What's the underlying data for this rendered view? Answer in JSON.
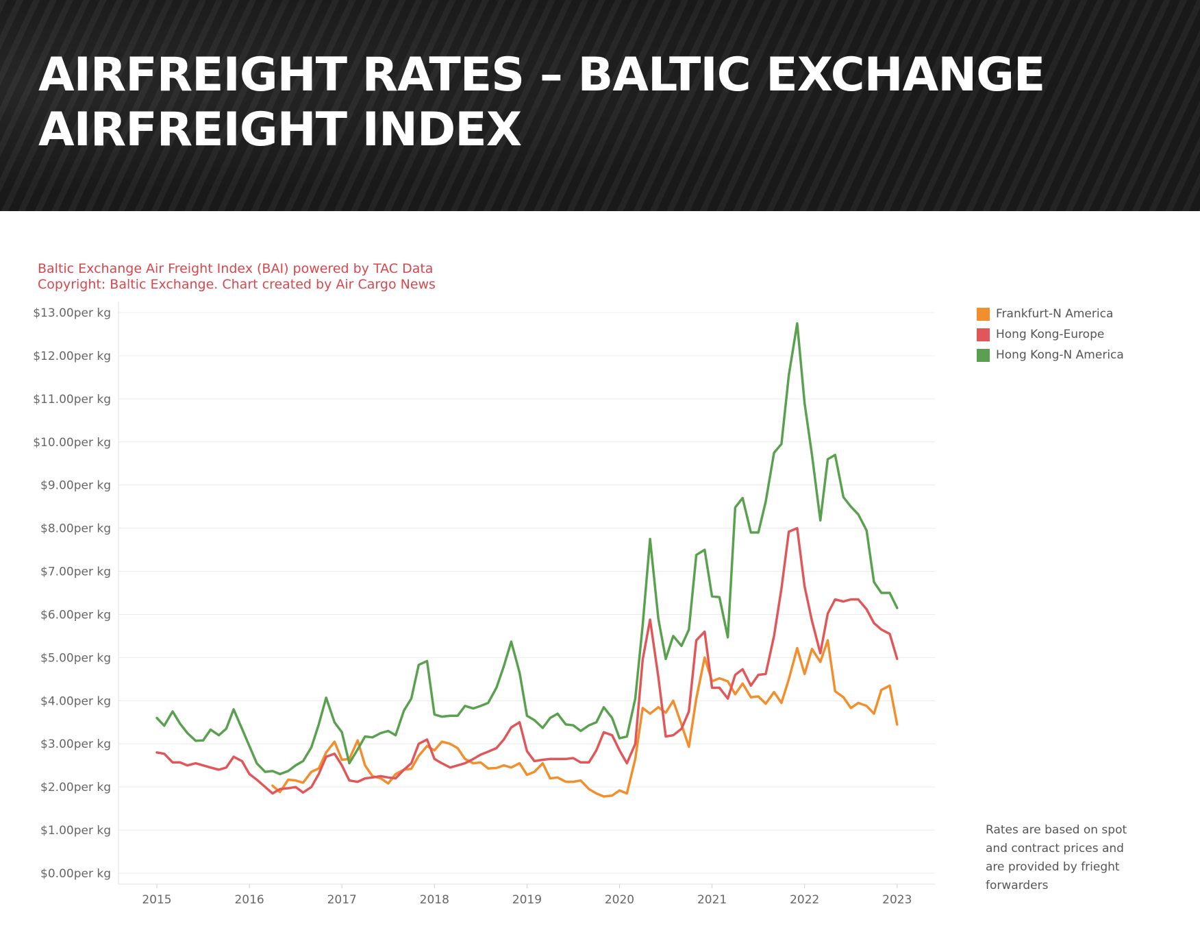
{
  "header": {
    "title": "AIRFREIGHT RATES – BALTIC EXCHANGE AIRFREIGHT INDEX"
  },
  "source": {
    "line1": "Baltic Exchange Air Freight Index (BAI) powered by TAC Data",
    "line2": "Copyright: Baltic Exchange. Chart created by Air Cargo News"
  },
  "footnote": "Rates are based on spot and contract prices and are provided by frieght forwarders",
  "chart_data": {
    "type": "line",
    "title": "",
    "xlabel": "",
    "ylabel": "",
    "ylim": [
      0,
      13
    ],
    "xlim": [
      2014.6,
      2023.4
    ],
    "grid": "horizontal",
    "legend_position": "right",
    "y_ticks": [
      {
        "value": 13,
        "label": "$13.00per kg"
      },
      {
        "value": 12,
        "label": "$12.00per kg"
      },
      {
        "value": 11,
        "label": "$11.00per kg"
      },
      {
        "value": 10,
        "label": "$10.00per kg"
      },
      {
        "value": 9,
        "label": "$9.00per kg"
      },
      {
        "value": 8,
        "label": "$8.00per kg"
      },
      {
        "value": 7,
        "label": "$7.00per kg"
      },
      {
        "value": 6,
        "label": "$6.00per kg"
      },
      {
        "value": 5,
        "label": "$5.00per kg"
      },
      {
        "value": 4,
        "label": "$4.00per kg"
      },
      {
        "value": 3,
        "label": "$3.00per kg"
      },
      {
        "value": 2,
        "label": "$2.00per kg"
      },
      {
        "value": 1,
        "label": "$1.00per kg"
      },
      {
        "value": 0,
        "label": "$0.00per kg"
      }
    ],
    "x_ticks": [
      {
        "value": 2015,
        "label": "2015"
      },
      {
        "value": 2016,
        "label": "2016"
      },
      {
        "value": 2017,
        "label": "2017"
      },
      {
        "value": 2018,
        "label": "2018"
      },
      {
        "value": 2019,
        "label": "2019"
      },
      {
        "value": 2020,
        "label": "2020"
      },
      {
        "value": 2021,
        "label": "2021"
      },
      {
        "value": 2022,
        "label": "2022"
      },
      {
        "value": 2023,
        "label": "2023"
      }
    ],
    "series": [
      {
        "name": "Frankfurt-N America",
        "color": "#f28e2b",
        "x": [
          2016.25,
          2016.33,
          2016.42,
          2016.5,
          2016.58,
          2016.67,
          2016.75,
          2016.83,
          2016.92,
          2017.0,
          2017.08,
          2017.17,
          2017.25,
          2017.33,
          2017.42,
          2017.5,
          2017.58,
          2017.67,
          2017.75,
          2017.83,
          2017.92,
          2018.0,
          2018.08,
          2018.17,
          2018.25,
          2018.33,
          2018.42,
          2018.5,
          2018.58,
          2018.67,
          2018.75,
          2018.83,
          2018.92,
          2019.0,
          2019.08,
          2019.17,
          2019.25,
          2019.33,
          2019.42,
          2019.5,
          2019.58,
          2019.67,
          2019.75,
          2019.83,
          2019.92,
          2020.0,
          2020.08,
          2020.17,
          2020.25,
          2020.33,
          2020.42,
          2020.5,
          2020.58,
          2020.67,
          2020.75,
          2020.83,
          2020.92,
          2021.0,
          2021.08,
          2021.17,
          2021.25,
          2021.33,
          2021.42,
          2021.5,
          2021.58,
          2021.67,
          2021.75,
          2021.83,
          2021.92,
          2022.0,
          2022.08,
          2022.17,
          2022.25,
          2022.33,
          2022.42,
          2022.5,
          2022.58,
          2022.67,
          2022.75,
          2022.83,
          2022.92,
          2023.0
        ],
        "values": [
          2.03,
          1.88,
          2.17,
          2.15,
          2.1,
          2.35,
          2.43,
          2.8,
          3.05,
          2.63,
          2.65,
          3.08,
          2.5,
          2.25,
          2.2,
          2.08,
          2.3,
          2.4,
          2.42,
          2.72,
          2.95,
          2.85,
          3.05,
          3.0,
          2.9,
          2.65,
          2.55,
          2.57,
          2.43,
          2.44,
          2.5,
          2.45,
          2.55,
          2.28,
          2.35,
          2.55,
          2.2,
          2.22,
          2.12,
          2.12,
          2.15,
          1.95,
          1.85,
          1.78,
          1.8,
          1.92,
          1.85,
          2.65,
          3.83,
          3.7,
          3.85,
          3.72,
          4.0,
          3.45,
          2.93,
          4.05,
          5.0,
          4.45,
          4.52,
          4.45,
          4.15,
          4.4,
          4.08,
          4.1,
          3.93,
          4.2,
          3.95,
          4.5,
          5.22,
          4.62,
          5.2,
          4.9,
          5.4,
          4.22,
          4.08,
          3.83,
          3.95,
          3.88,
          3.7,
          4.25,
          4.35,
          3.45
        ]
      },
      {
        "name": "Hong Kong-Europe",
        "color": "#e15759",
        "x": [
          2015.0,
          2015.08,
          2015.17,
          2015.25,
          2015.33,
          2015.42,
          2015.5,
          2015.58,
          2015.67,
          2015.75,
          2015.83,
          2015.92,
          2016.0,
          2016.08,
          2016.17,
          2016.25,
          2016.33,
          2016.42,
          2016.5,
          2016.58,
          2016.67,
          2016.75,
          2016.83,
          2016.92,
          2017.0,
          2017.08,
          2017.17,
          2017.25,
          2017.33,
          2017.42,
          2017.5,
          2017.58,
          2017.67,
          2017.75,
          2017.83,
          2017.92,
          2018.0,
          2018.08,
          2018.17,
          2018.25,
          2018.33,
          2018.42,
          2018.5,
          2018.58,
          2018.67,
          2018.75,
          2018.83,
          2018.92,
          2019.0,
          2019.08,
          2019.17,
          2019.25,
          2019.33,
          2019.42,
          2019.5,
          2019.58,
          2019.67,
          2019.75,
          2019.83,
          2019.92,
          2020.0,
          2020.08,
          2020.17,
          2020.25,
          2020.33,
          2020.42,
          2020.5,
          2020.58,
          2020.67,
          2020.75,
          2020.83,
          2020.92,
          2021.0,
          2021.08,
          2021.17,
          2021.25,
          2021.33,
          2021.42,
          2021.5,
          2021.58,
          2021.67,
          2021.75,
          2021.83,
          2021.92,
          2022.0,
          2022.08,
          2022.17,
          2022.25,
          2022.33,
          2022.42,
          2022.5,
          2022.58,
          2022.67,
          2022.75,
          2022.83,
          2022.92,
          2023.0
        ],
        "values": [
          2.8,
          2.77,
          2.57,
          2.57,
          2.5,
          2.55,
          2.5,
          2.45,
          2.4,
          2.45,
          2.7,
          2.6,
          2.3,
          2.17,
          2.0,
          1.85,
          1.95,
          1.97,
          2.0,
          1.87,
          2.0,
          2.3,
          2.7,
          2.77,
          2.5,
          2.15,
          2.12,
          2.2,
          2.22,
          2.25,
          2.22,
          2.2,
          2.4,
          2.55,
          3.0,
          3.1,
          2.65,
          2.55,
          2.45,
          2.5,
          2.55,
          2.65,
          2.75,
          2.82,
          2.9,
          3.1,
          3.38,
          3.5,
          2.83,
          2.6,
          2.63,
          2.65,
          2.65,
          2.65,
          2.67,
          2.57,
          2.57,
          2.85,
          3.27,
          3.2,
          2.85,
          2.55,
          3.0,
          4.95,
          5.88,
          4.55,
          3.17,
          3.2,
          3.35,
          3.75,
          5.4,
          5.6,
          4.3,
          4.3,
          4.05,
          4.6,
          4.73,
          4.35,
          4.6,
          4.62,
          5.5,
          6.6,
          7.92,
          8.0,
          6.65,
          5.85,
          5.1,
          6.02,
          6.35,
          6.3,
          6.35,
          6.35,
          6.12,
          5.8,
          5.65,
          5.55,
          4.97
        ]
      },
      {
        "name": "Hong Kong-N America",
        "color": "#59a14f",
        "x": [
          2015.0,
          2015.08,
          2015.17,
          2015.25,
          2015.33,
          2015.42,
          2015.5,
          2015.58,
          2015.67,
          2015.75,
          2015.83,
          2015.92,
          2016.0,
          2016.08,
          2016.17,
          2016.25,
          2016.33,
          2016.42,
          2016.5,
          2016.58,
          2016.67,
          2016.75,
          2016.83,
          2016.92,
          2017.0,
          2017.08,
          2017.17,
          2017.25,
          2017.33,
          2017.42,
          2017.5,
          2017.58,
          2017.67,
          2017.75,
          2017.83,
          2017.92,
          2018.0,
          2018.08,
          2018.17,
          2018.25,
          2018.33,
          2018.42,
          2018.5,
          2018.58,
          2018.67,
          2018.75,
          2018.83,
          2018.92,
          2019.0,
          2019.08,
          2019.17,
          2019.25,
          2019.33,
          2019.42,
          2019.5,
          2019.58,
          2019.67,
          2019.75,
          2019.83,
          2019.92,
          2020.0,
          2020.08,
          2020.17,
          2020.25,
          2020.33,
          2020.42,
          2020.5,
          2020.58,
          2020.67,
          2020.75,
          2020.83,
          2020.92,
          2021.0,
          2021.08,
          2021.17,
          2021.25,
          2021.33,
          2021.42,
          2021.5,
          2021.58,
          2021.67,
          2021.75,
          2021.83,
          2021.92,
          2022.0,
          2022.08,
          2022.17,
          2022.25,
          2022.33,
          2022.42,
          2022.5,
          2022.58,
          2022.67,
          2022.75,
          2022.83,
          2022.92,
          2023.0
        ],
        "values": [
          3.6,
          3.42,
          3.75,
          3.47,
          3.25,
          3.07,
          3.08,
          3.33,
          3.2,
          3.35,
          3.8,
          3.35,
          2.95,
          2.55,
          2.35,
          2.37,
          2.3,
          2.37,
          2.5,
          2.6,
          2.92,
          3.45,
          4.07,
          3.5,
          3.27,
          2.55,
          2.87,
          3.17,
          3.15,
          3.25,
          3.3,
          3.2,
          3.77,
          4.05,
          4.83,
          4.92,
          3.68,
          3.63,
          3.65,
          3.65,
          3.88,
          3.82,
          3.88,
          3.95,
          4.3,
          4.8,
          5.37,
          4.65,
          3.65,
          3.55,
          3.37,
          3.6,
          3.7,
          3.45,
          3.43,
          3.3,
          3.43,
          3.5,
          3.85,
          3.6,
          3.13,
          3.17,
          4.05,
          5.75,
          7.75,
          5.9,
          4.97,
          5.5,
          5.27,
          5.65,
          7.38,
          7.5,
          6.42,
          6.4,
          5.47,
          8.48,
          8.7,
          7.9,
          7.9,
          8.62,
          9.75,
          9.95,
          11.55,
          12.75,
          10.9,
          9.7,
          8.18,
          9.6,
          9.7,
          8.72,
          8.5,
          8.32,
          7.95,
          6.75,
          6.5,
          6.5,
          6.15
        ]
      }
    ]
  }
}
